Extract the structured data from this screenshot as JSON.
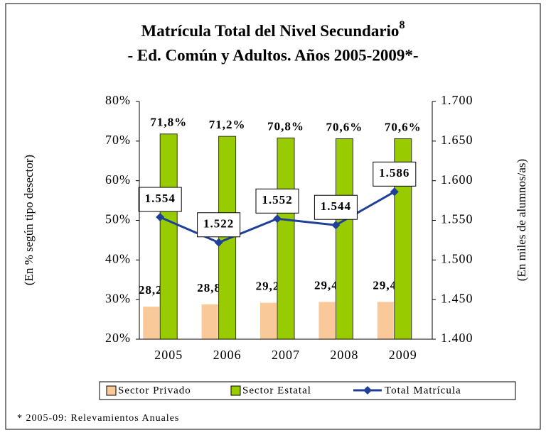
{
  "chart_data": {
    "type": "bar-line",
    "title": "Matrícula Total del Nivel Secundario",
    "title_note": "8",
    "subtitle": "- Ed. Común y Adultos. Años 2005-2009*-",
    "y_label": "(En % según tipo desector)",
    "y2_label": "(En miles de alumnos/as)",
    "footnote": "* 2005-09: Relevamientos Anuales",
    "categories": [
      "2005",
      "2006",
      "2007",
      "2008",
      "2009"
    ],
    "series": [
      {
        "name": "Sector Privado",
        "type": "bar",
        "color": "#fac99a",
        "values": [
          28.2,
          28.8,
          29.2,
          29.4,
          29.4
        ],
        "value_labels": [
          "28,2%",
          "28,8%",
          "29,2%",
          "29,4%",
          "29,4%"
        ]
      },
      {
        "name": "Sector Estatal",
        "type": "bar",
        "color": "#99cc00",
        "values": [
          71.8,
          71.2,
          70.8,
          70.6,
          70.6
        ],
        "value_labels": [
          "71,8%",
          "71,2%",
          "70,8%",
          "70,6%",
          "70,6%"
        ]
      },
      {
        "name": "Total Matrícula",
        "type": "line",
        "axis": "y2",
        "color": "#1f3f99",
        "values": [
          1554,
          1522,
          1552,
          1544,
          1586
        ],
        "value_labels": [
          "1.554",
          "1.522",
          "1.552",
          "1.544",
          "1.586"
        ]
      }
    ],
    "ylim": [
      20,
      80
    ],
    "yticks": [
      {
        "value": 20,
        "label": "20%"
      },
      {
        "value": 30,
        "label": "30%"
      },
      {
        "value": 40,
        "label": "40%"
      },
      {
        "value": 50,
        "label": "50%"
      },
      {
        "value": 60,
        "label": "60%"
      },
      {
        "value": 70,
        "label": "70%"
      },
      {
        "value": 80,
        "label": "80%"
      }
    ],
    "y2lim": [
      1400,
      1700
    ],
    "y2ticks": [
      {
        "value": 1400,
        "label": "1.400"
      },
      {
        "value": 1450,
        "label": "1.450"
      },
      {
        "value": 1500,
        "label": "1.500"
      },
      {
        "value": 1550,
        "label": "1.550"
      },
      {
        "value": 1600,
        "label": "1.600"
      },
      {
        "value": 1650,
        "label": "1.650"
      },
      {
        "value": 1700,
        "label": "1.700"
      }
    ]
  }
}
